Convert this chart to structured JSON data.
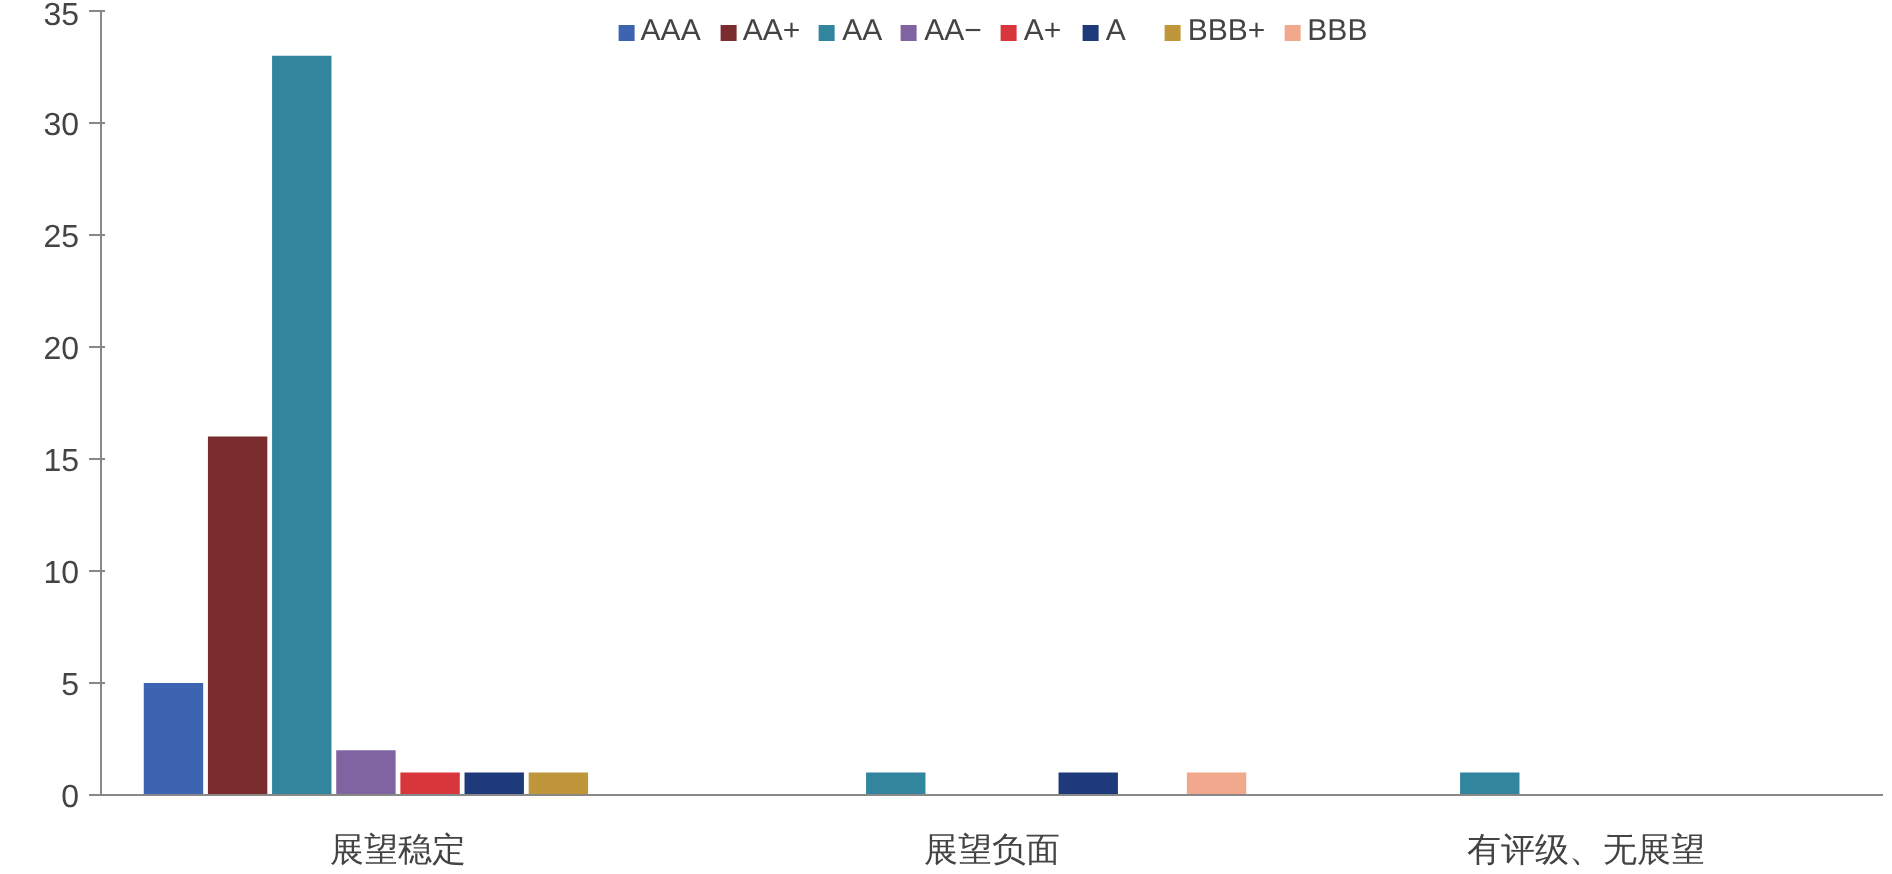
{
  "chart_data": {
    "type": "bar",
    "categories": [
      "展望稳定",
      "展望负面",
      "有评级、无展望"
    ],
    "series": [
      {
        "name": "AAA",
        "color": "#3c64b1",
        "values": [
          5,
          0,
          0
        ]
      },
      {
        "name": "AA+",
        "color": "#7b2c2e",
        "values": [
          16,
          0,
          0
        ]
      },
      {
        "name": "AA",
        "color": "#31859c",
        "values": [
          33,
          1,
          1
        ]
      },
      {
        "name": "AA−",
        "color": "#8064a2",
        "values": [
          2,
          0,
          0
        ]
      },
      {
        "name": "A+",
        "color": "#d9363c",
        "values": [
          1,
          0,
          0
        ]
      },
      {
        "name": "A",
        "color": "#1f3a7a",
        "values": [
          1,
          1,
          0
        ]
      },
      {
        "name": "BBB+",
        "color": "#c0963b",
        "values": [
          1,
          0,
          0
        ]
      },
      {
        "name": "BBB",
        "color": "#f2a88c",
        "values": [
          0,
          1,
          0
        ]
      }
    ],
    "ylim": [
      0,
      35
    ],
    "yticks": [
      0,
      5,
      10,
      15,
      20,
      25,
      30,
      35
    ],
    "grid": false,
    "legend": "top"
  }
}
